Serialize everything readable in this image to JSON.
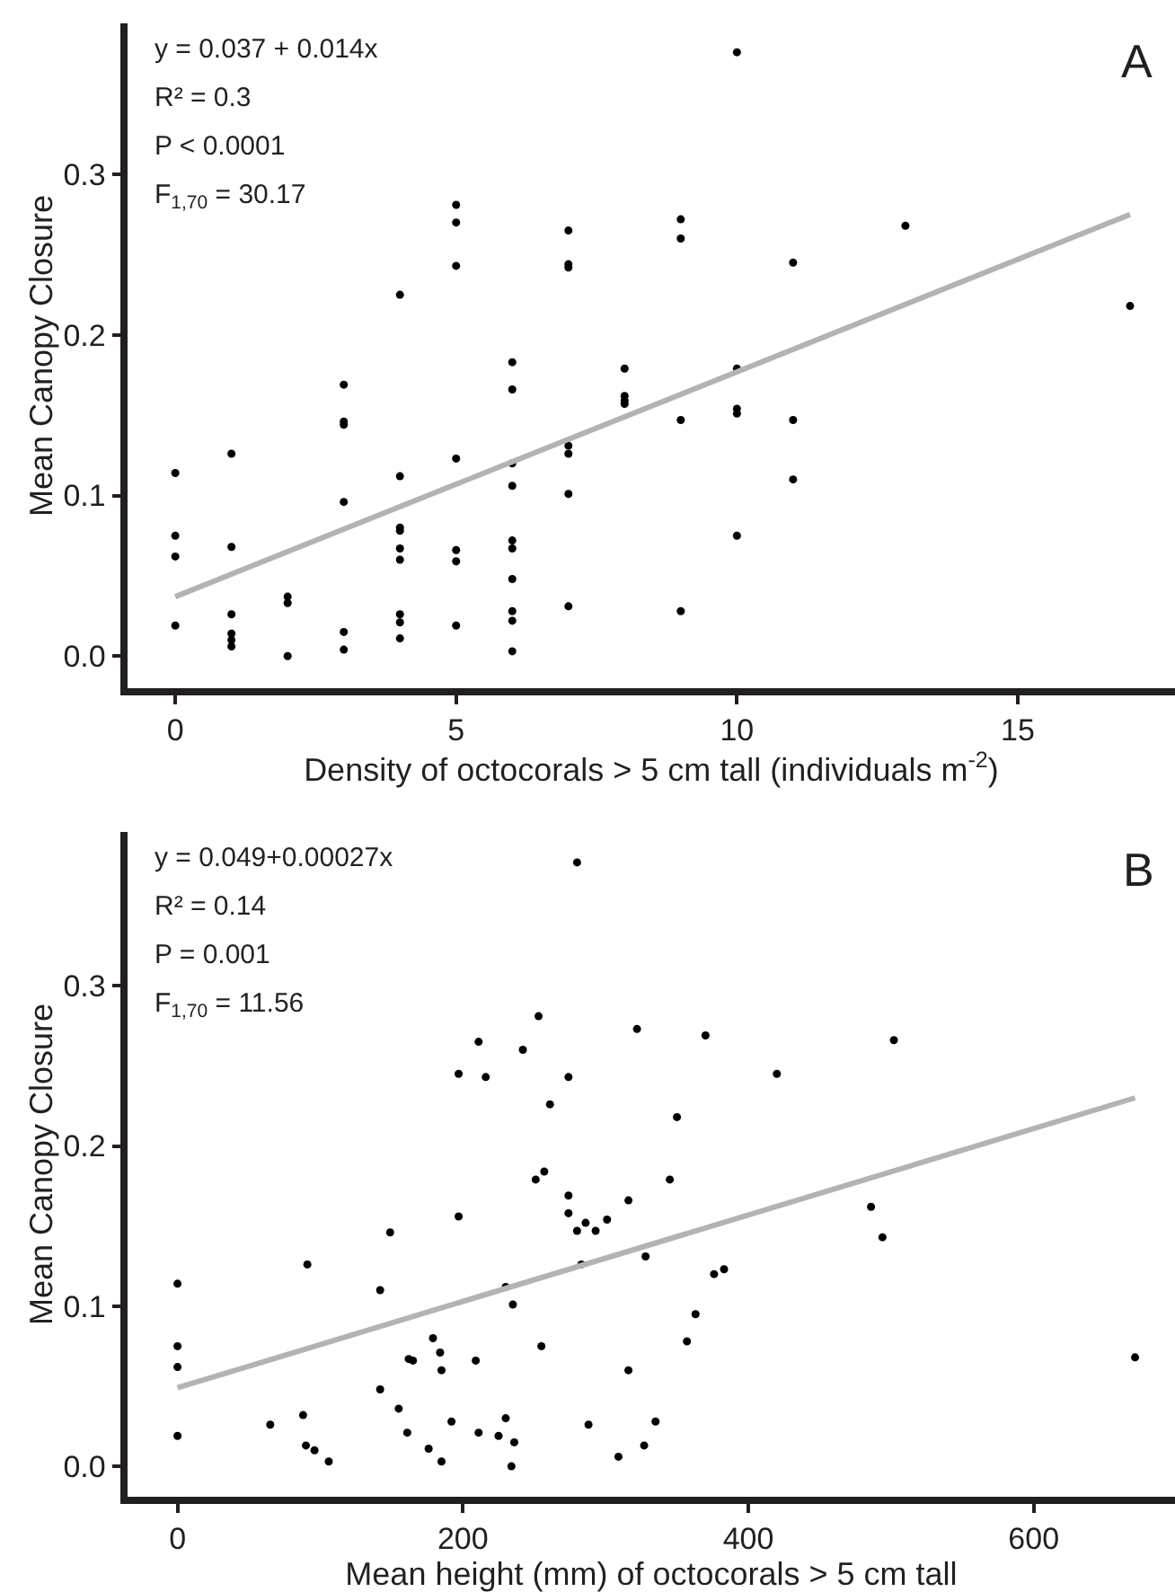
{
  "chart_data": [
    {
      "type": "scatter",
      "title": "A",
      "xlabel": "Density of octocorals > 5 cm tall (individuals m$^{-2}$)",
      "ylabel": "Mean Canopy Closure",
      "annotations": [
        "y = 0.037 + 0.014x",
        "R² = 0.3",
        "P < 0.0001",
        "F$_{1,70}$ = 30.17"
      ],
      "series": [
        {
          "type": "scatter",
          "color": "#000000",
          "marker": "circle",
          "x": [
            0,
            0,
            0,
            0,
            1,
            1,
            1,
            1,
            1,
            1,
            2,
            2,
            2,
            3,
            3,
            3,
            3,
            3,
            3,
            4,
            4,
            4,
            4,
            4,
            4,
            4,
            4,
            4,
            5,
            5,
            5,
            5,
            5,
            5,
            5,
            6,
            6,
            6,
            6,
            6,
            6,
            6,
            6,
            6,
            6,
            7,
            7,
            7,
            7,
            7,
            7,
            7,
            8,
            8,
            8,
            8,
            9,
            9,
            9,
            9,
            10,
            10,
            10,
            10,
            10,
            11,
            11,
            11,
            13,
            17
          ],
          "values": [
            0.114,
            0.075,
            0.062,
            0.019,
            0.126,
            0.068,
            0.026,
            0.014,
            0.01,
            0.006,
            0.037,
            0.033,
            0.0,
            0.169,
            0.146,
            0.144,
            0.096,
            0.015,
            0.004,
            0.225,
            0.112,
            0.08,
            0.078,
            0.067,
            0.06,
            0.026,
            0.021,
            0.011,
            0.281,
            0.27,
            0.243,
            0.123,
            0.066,
            0.059,
            0.019,
            0.183,
            0.166,
            0.12,
            0.106,
            0.072,
            0.067,
            0.048,
            0.028,
            0.022,
            0.003,
            0.265,
            0.244,
            0.242,
            0.131,
            0.126,
            0.101,
            0.031,
            0.179,
            0.162,
            0.159,
            0.157,
            0.272,
            0.26,
            0.147,
            0.028,
            0.376,
            0.179,
            0.154,
            0.151,
            0.075,
            0.245,
            0.147,
            0.11,
            0.268,
            0.218
          ]
        },
        {
          "type": "line",
          "color": "#b3b3b3",
          "marker": "none",
          "line_style": "solid",
          "x": [
            0,
            17
          ],
          "values": [
            0.037,
            0.275
          ]
        }
      ],
      "xlim": [
        -0.85,
        17.8
      ],
      "ylim": [
        -0.02,
        0.394
      ],
      "xticks": [
        0,
        5,
        10,
        15
      ],
      "yticks": [
        {
          "value": 0,
          "label": "0.0"
        },
        0.1,
        0.2,
        0.3
      ]
    },
    {
      "type": "scatter",
      "title": "B",
      "xlabel": "Mean height (mm) of octocorals > 5 cm tall",
      "ylabel": "Mean Canopy Closure",
      "annotations": [
        "y = 0.049+0.00027x",
        "R² = 0.14",
        "P = 0.001",
        "F$_{1,70}$ = 11.56"
      ],
      "series": [
        {
          "type": "scatter",
          "color": "#000000",
          "marker": "circle",
          "x": [
            0,
            0,
            0,
            0,
            65,
            88,
            90,
            96,
            106,
            91,
            142,
            142,
            149,
            155,
            161,
            162,
            165,
            176,
            179,
            184,
            185,
            185,
            192,
            197,
            197,
            209,
            211,
            211,
            216,
            225,
            230,
            230,
            234,
            235,
            236,
            242,
            251,
            253,
            255,
            257,
            261,
            274,
            274,
            274,
            280,
            280,
            283,
            286,
            288,
            293,
            301,
            309,
            316,
            316,
            322,
            327,
            328,
            335,
            345,
            350,
            357,
            363,
            370,
            376,
            383,
            420,
            486,
            494,
            502,
            671
          ],
          "values": [
            0.114,
            0.075,
            0.062,
            0.019,
            0.026,
            0.032,
            0.013,
            0.01,
            0.003,
            0.126,
            0.11,
            0.048,
            0.146,
            0.036,
            0.021,
            0.067,
            0.066,
            0.011,
            0.08,
            0.071,
            0.06,
            0.003,
            0.028,
            0.245,
            0.156,
            0.066,
            0.021,
            0.265,
            0.243,
            0.019,
            0.112,
            0.03,
            0.0,
            0.101,
            0.015,
            0.26,
            0.179,
            0.281,
            0.075,
            0.184,
            0.226,
            0.243,
            0.169,
            0.158,
            0.377,
            0.147,
            0.126,
            0.152,
            0.026,
            0.147,
            0.154,
            0.006,
            0.06,
            0.166,
            0.273,
            0.013,
            0.131,
            0.028,
            0.179,
            0.218,
            0.078,
            0.095,
            0.269,
            0.12,
            0.123,
            0.245,
            0.162,
            0.143,
            0.266,
            0.068
          ]
        },
        {
          "type": "line",
          "color": "#b3b3b3",
          "marker": "none",
          "line_style": "solid",
          "x": [
            0,
            671
          ],
          "values": [
            0.049,
            0.23
          ]
        }
      ],
      "xlim": [
        -35,
        699
      ],
      "ylim": [
        -0.019,
        0.396
      ],
      "xticks": [
        0,
        200,
        400,
        600
      ],
      "yticks": [
        {
          "value": 0,
          "label": "0.0"
        },
        0.1,
        0.2,
        0.3
      ]
    }
  ]
}
